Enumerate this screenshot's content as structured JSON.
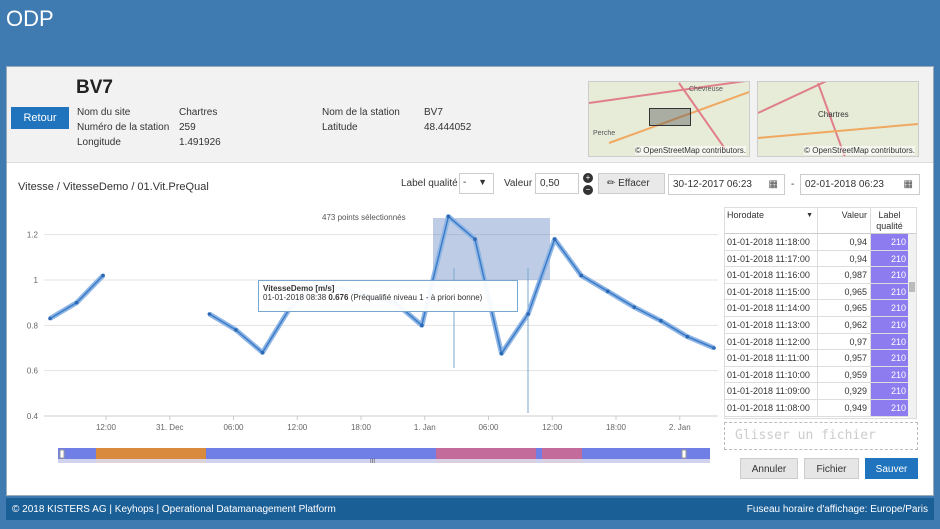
{
  "app": {
    "title": "ODP"
  },
  "header": {
    "station": "BV7",
    "retour": "Retour",
    "fields": [
      {
        "label": "Nom du site",
        "value": "Chartres"
      },
      {
        "label": "Numéro de la station",
        "value": "259"
      },
      {
        "label": "Longitude",
        "value": "1.491926"
      },
      {
        "label": "Nom de la station",
        "value": "BV7"
      },
      {
        "label": "Latitude",
        "value": "48.444052"
      }
    ],
    "map_attribution": "© OpenStreetMap contributors.",
    "map_labels": [
      "Chevreuse",
      "Chartres",
      "Perche"
    ]
  },
  "controls": {
    "path": "Vitesse / VitesseDemo / 01.Vit.PreQual",
    "label_qualite": "Label qualité",
    "label_qualite_value": "-",
    "valeur_label": "Valeur",
    "valeur": "0,50",
    "effacer": "Effacer",
    "date_from": "30-12-2017 06:23",
    "date_sep": "-",
    "date_to": "02-01-2018 06:23"
  },
  "chart_data": {
    "type": "line",
    "series": [
      {
        "name": "VitesseDemo [m/s]",
        "x": [
          "2017-12-30 06:23",
          "2017-12-30 09:00",
          "2017-12-30 12:00",
          "2017-12-30 15:00",
          "2017-12-30 18:00",
          "2017-12-30 21:00",
          "2017-12-31 00:00",
          "2017-12-31 03:00",
          "2017-12-31 06:00",
          "2017-12-31 09:00",
          "2017-12-31 12:00",
          "2017-12-31 15:00",
          "2017-12-31 18:00",
          "2017-12-31 21:00",
          "2018-01-01 00:00",
          "2018-01-01 03:00",
          "2018-01-01 06:00",
          "2018-01-01 08:38",
          "2018-01-01 10:00",
          "2018-01-01 12:00",
          "2018-01-01 15:00",
          "2018-01-01 18:00",
          "2018-01-01 21:00",
          "2018-01-02 00:00",
          "2018-01-02 03:00",
          "2018-01-02 06:23"
        ],
        "values": [
          0.83,
          0.9,
          1.02,
          null,
          null,
          null,
          0.85,
          0.78,
          0.68,
          0.87,
          0.98,
          0.96,
          0.93,
          0.9,
          0.8,
          1.28,
          1.18,
          0.676,
          0.85,
          1.18,
          1.02,
          0.95,
          0.88,
          0.82,
          0.75,
          0.7
        ]
      }
    ],
    "x_ticks": [
      "12:00",
      "31. Dec",
      "06:00",
      "12:00",
      "18:00",
      "1. Jan",
      "06:00",
      "12:00",
      "18:00",
      "2. Jan"
    ],
    "y_ticks": [
      "0.4",
      "0.6",
      "0.8",
      "1",
      "1.2"
    ],
    "ylim": [
      0.4,
      1.3
    ],
    "grid": true,
    "selection_text": "473 points sélectionnés",
    "tooltip": {
      "title": "VitesseDemo [m/s]",
      "time": "01-01-2018 08:38",
      "value": "0.676",
      "desc": "(Préqualifié niveau 1 - à priori bonne)"
    }
  },
  "navigator_label": "III",
  "table": {
    "headers": {
      "time": "Horodate",
      "value": "Valeur",
      "label1": "Label",
      "label2": "qualité"
    },
    "rows": [
      {
        "t": "01-01-2018 11:18:00",
        "v": "0,94",
        "q": "210"
      },
      {
        "t": "01-01-2018 11:17:00",
        "v": "0,94",
        "q": "210"
      },
      {
        "t": "01-01-2018 11:16:00",
        "v": "0,987",
        "q": "210"
      },
      {
        "t": "01-01-2018 11:15:00",
        "v": "0,965",
        "q": "210"
      },
      {
        "t": "01-01-2018 11:14:00",
        "v": "0,965",
        "q": "210"
      },
      {
        "t": "01-01-2018 11:13:00",
        "v": "0,962",
        "q": "210"
      },
      {
        "t": "01-01-2018 11:12:00",
        "v": "0,97",
        "q": "210"
      },
      {
        "t": "01-01-2018 11:11:00",
        "v": "0,957",
        "q": "210"
      },
      {
        "t": "01-01-2018 11:10:00",
        "v": "0,959",
        "q": "210"
      },
      {
        "t": "01-01-2018 11:09:00",
        "v": "0,929",
        "q": "210"
      },
      {
        "t": "01-01-2018 11:08:00",
        "v": "0,949",
        "q": "210"
      }
    ]
  },
  "drop_text": "Glisser un fichier",
  "buttons": {
    "annuler": "Annuler",
    "fichier": "Fichier",
    "sauver": "Sauver"
  },
  "footer": {
    "left": "© 2018 KISTERS AG | Keyhops | Operational Datamanagement Platform",
    "right": "Fuseau horaire d'affichage: Europe/Paris"
  }
}
